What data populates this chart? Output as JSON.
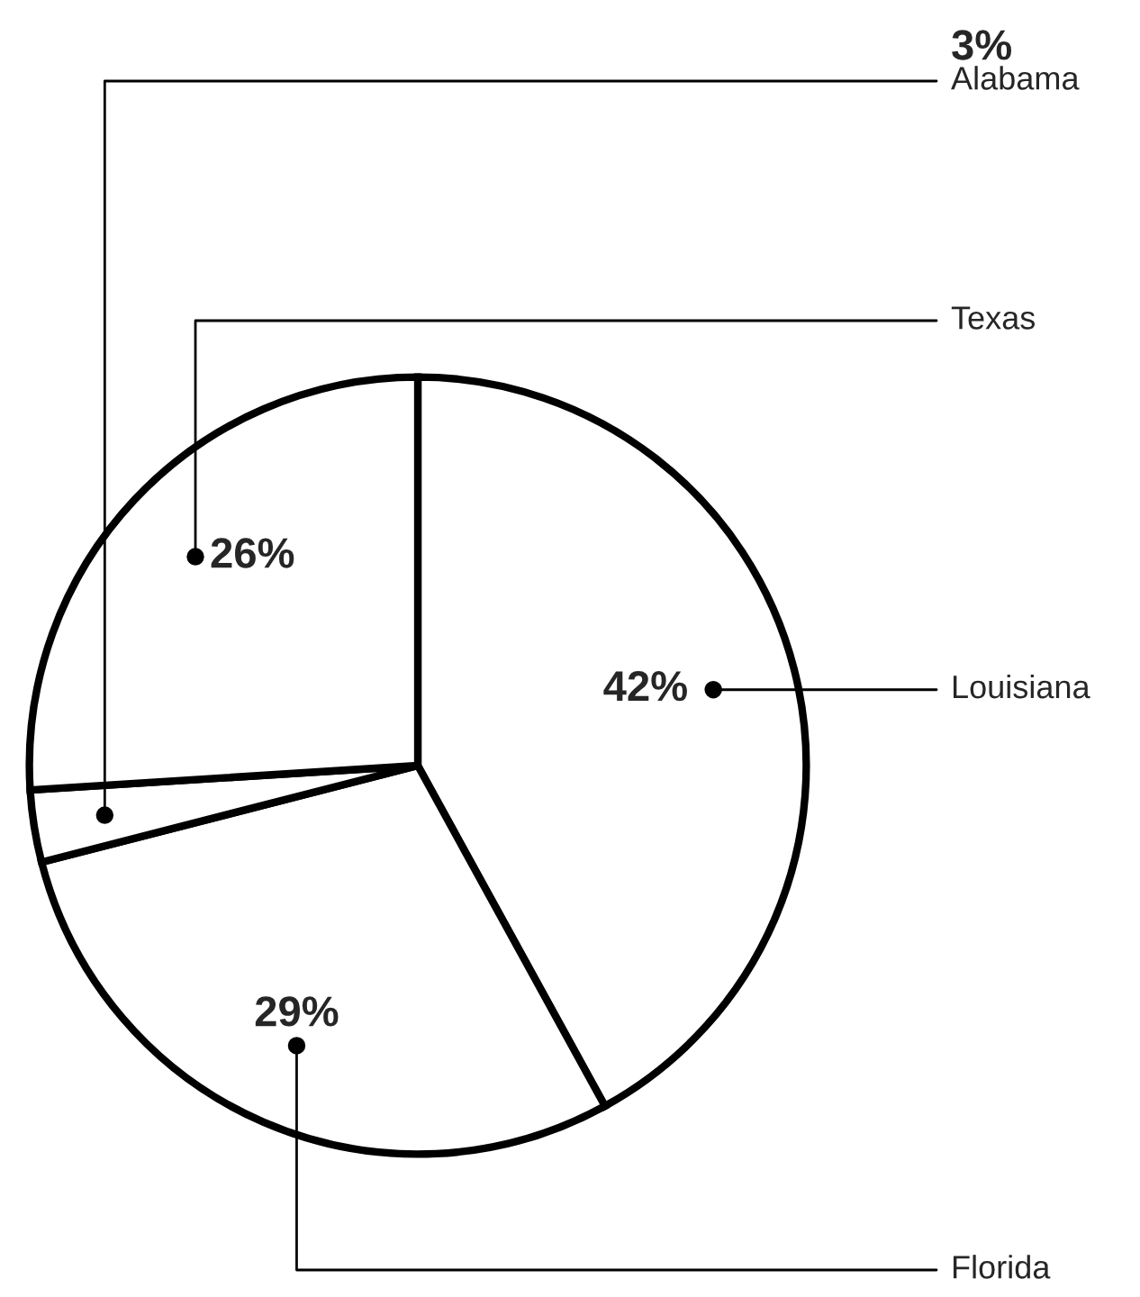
{
  "chart_data": {
    "type": "pie",
    "categories": [
      "Louisiana",
      "Florida",
      "Alabama",
      "Texas"
    ],
    "values": [
      42,
      29,
      3,
      26
    ],
    "colors": [
      "#ffffff",
      "#ffffff",
      "#ffffff",
      "#ffffff"
    ],
    "value_labels": [
      "42%",
      "29%",
      "3%",
      "26%"
    ]
  }
}
